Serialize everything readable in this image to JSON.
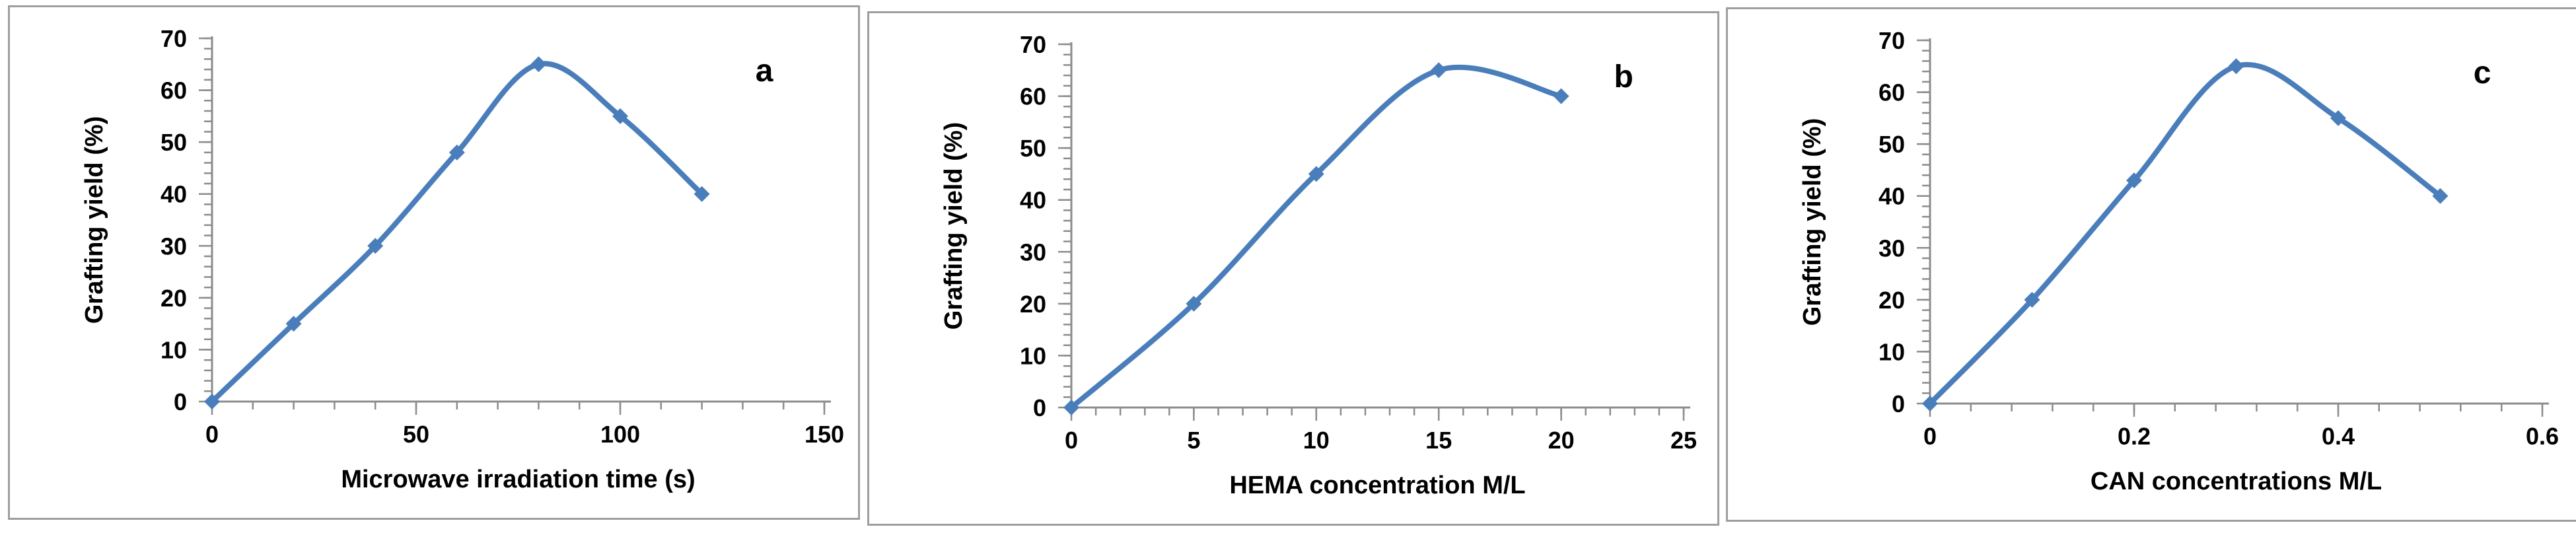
{
  "figure": {
    "background": "#ffffff",
    "panel_border_color": "#9e9e9e"
  },
  "style": {
    "line_color": "#4a7ebb",
    "marker_color": "#4a7ebb",
    "axis_color": "#8c8c8c",
    "text_color": "#000000"
  },
  "chart_data": [
    {
      "type": "line",
      "panel_label": "a",
      "title": "",
      "xlabel": "Microwave irradiation time (s)",
      "ylabel": "Grafting yield (%)",
      "x": [
        0,
        20,
        40,
        60,
        80,
        100,
        120
      ],
      "y": [
        0,
        15,
        30,
        48,
        65,
        55,
        40
      ],
      "xlim": [
        0,
        150
      ],
      "ylim": [
        0,
        70
      ],
      "xticks": [
        0,
        50,
        100,
        150
      ],
      "yticks": [
        0,
        10,
        20,
        30,
        40,
        50,
        60,
        70
      ],
      "x_minor_step": 10,
      "y_minor_step": 2,
      "grid": false,
      "legend": "none",
      "marker": "diamond",
      "smooth": true
    },
    {
      "type": "line",
      "panel_label": "b",
      "title": "",
      "xlabel": "HEMA concentration M/L",
      "ylabel": "Grafting yield (%)",
      "x": [
        0,
        5,
        10,
        15,
        20
      ],
      "y": [
        0,
        20,
        45,
        65,
        60
      ],
      "xlim": [
        0,
        25
      ],
      "ylim": [
        0,
        70
      ],
      "xticks": [
        0,
        5,
        10,
        15,
        20,
        25
      ],
      "yticks": [
        0,
        10,
        20,
        30,
        40,
        50,
        60,
        70
      ],
      "x_minor_step": 1,
      "y_minor_step": 2,
      "grid": false,
      "legend": "none",
      "marker": "diamond",
      "smooth": true
    },
    {
      "type": "line",
      "panel_label": "c",
      "title": "",
      "xlabel": "CAN concentrations M/L",
      "ylabel": "Grafting yield (%)",
      "x": [
        0,
        0.1,
        0.2,
        0.3,
        0.4,
        0.5
      ],
      "y": [
        0,
        20,
        43,
        65,
        55,
        40
      ],
      "xlim": [
        0,
        0.6
      ],
      "ylim": [
        0,
        70
      ],
      "xticks": [
        0,
        0.2,
        0.4,
        0.6
      ],
      "yticks": [
        0,
        10,
        20,
        30,
        40,
        50,
        60,
        70
      ],
      "x_minor_step": 0.04,
      "y_minor_step": 2,
      "grid": false,
      "legend": "none",
      "marker": "diamond",
      "smooth": true
    }
  ]
}
